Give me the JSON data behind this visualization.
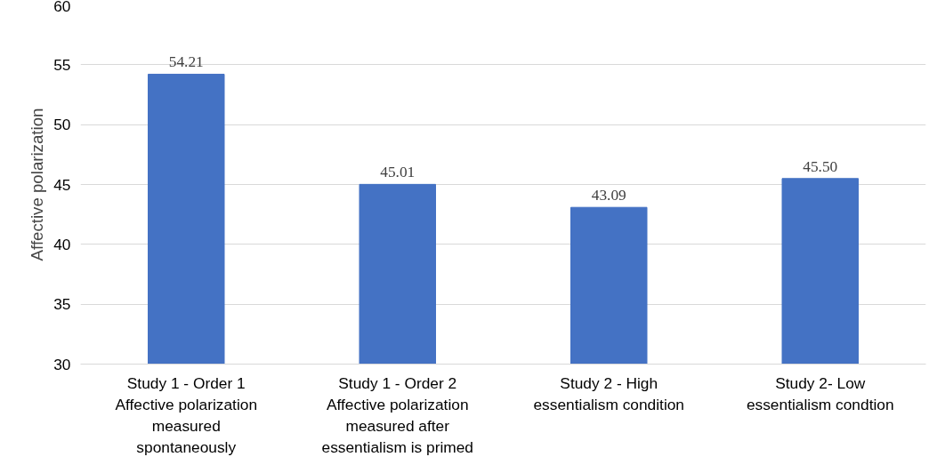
{
  "chart_data": {
    "type": "bar",
    "ylabel": "Affective polarization",
    "categories": [
      "Study 1 - Order 1\nAffective polarization\nmeasured\nspontaneously",
      "Study 1 - Order 2\nAffective polarization\nmeasured after\nessentialism is primed",
      "Study 2 - High\nessentialism condition",
      "Study 2- Low\nessentialism condtion"
    ],
    "values": [
      54.21,
      45.01,
      43.09,
      45.5
    ],
    "value_labels": [
      "54.21",
      "45.01",
      "43.09",
      "45.50"
    ],
    "color": "#4472c4",
    "ylim": [
      30,
      60
    ],
    "yticks": [
      30,
      35,
      40,
      45,
      50,
      55,
      60
    ],
    "grid": "y"
  }
}
